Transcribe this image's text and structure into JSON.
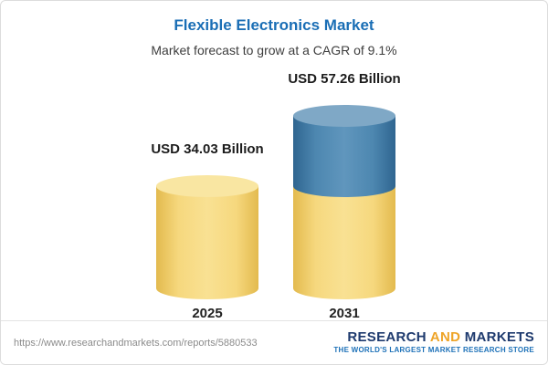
{
  "header": {
    "title": "Flexible Electronics Market",
    "subtitle": "Market forecast to grow at a CAGR of 9.1%"
  },
  "chart_data": {
    "type": "bar",
    "title": "Flexible Electronics Market",
    "subtitle": "Market forecast to grow at a CAGR of 9.1%",
    "categories": [
      "2025",
      "2031"
    ],
    "values": [
      34.03,
      57.26
    ],
    "value_labels": [
      "USD 34.03 Billion",
      "USD 57.26 Billion"
    ],
    "unit": "USD Billion",
    "cagr_percent": 9.1,
    "legend_position": "none",
    "grid": false,
    "bar_colors": {
      "base_yellow": "#f3d678",
      "growth_blue": "#4a80aa"
    }
  },
  "footer": {
    "url": "https://www.researchandmarkets.com/reports/5880533",
    "logo": {
      "word1": "RESEARCH",
      "word2": "AND",
      "word3": "MARKETS",
      "tagline": "THE WORLD'S LARGEST MARKET RESEARCH STORE"
    }
  },
  "colors": {
    "title_blue": "#1a6eb5",
    "logo_navy": "#1e3a6e",
    "logo_gold": "#eea428",
    "tagline_blue": "#1d71b8"
  }
}
